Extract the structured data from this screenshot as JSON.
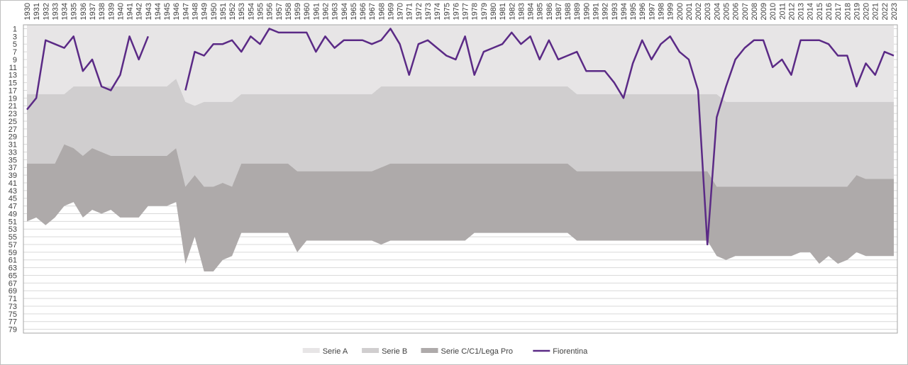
{
  "chart_data": {
    "type": "stacked_area_line",
    "categories": [
      "1930",
      "1931",
      "1932",
      "1933",
      "1934",
      "1935",
      "1936",
      "1937",
      "1938",
      "1939",
      "1940",
      "1941",
      "1942",
      "1943",
      "1944",
      "1945",
      "1946",
      "1947",
      "1948",
      "1949",
      "1950",
      "1951",
      "1952",
      "1953",
      "1954",
      "1955",
      "1956",
      "1957",
      "1958",
      "1959",
      "1960",
      "1961",
      "1962",
      "1963",
      "1964",
      "1965",
      "1966",
      "1967",
      "1968",
      "1969",
      "1970",
      "1971",
      "1972",
      "1973",
      "1974",
      "1975",
      "1976",
      "1977",
      "1978",
      "1979",
      "1980",
      "1981",
      "1982",
      "1983",
      "1984",
      "1985",
      "1986",
      "1987",
      "1988",
      "1989",
      "1990",
      "1991",
      "1992",
      "1993",
      "1994",
      "1995",
      "1996",
      "1997",
      "1998",
      "1999",
      "2000",
      "2001",
      "2002",
      "2003",
      "2004",
      "2005",
      "2006",
      "2007",
      "2008",
      "2009",
      "2010",
      "2011",
      "2012",
      "2013",
      "2014",
      "2015",
      "2016",
      "2017",
      "2018",
      "2019",
      "2020",
      "2021",
      "2022",
      "2023"
    ],
    "series": [
      {
        "name": "Serie A",
        "kind": "area",
        "color": "#e7e5e6",
        "values": [
          18,
          18,
          18,
          18,
          18,
          16,
          16,
          16,
          16,
          16,
          16,
          16,
          16,
          16,
          16,
          16,
          14,
          20,
          21,
          20,
          20,
          20,
          20,
          18,
          18,
          18,
          18,
          18,
          18,
          18,
          18,
          18,
          18,
          18,
          18,
          18,
          18,
          18,
          16,
          16,
          16,
          16,
          16,
          16,
          16,
          16,
          16,
          16,
          16,
          16,
          16,
          16,
          16,
          16,
          16,
          16,
          16,
          16,
          16,
          18,
          18,
          18,
          18,
          18,
          18,
          18,
          18,
          18,
          18,
          18,
          18,
          18,
          18,
          18,
          18,
          20,
          20,
          20,
          20,
          20,
          20,
          20,
          20,
          20,
          20,
          20,
          20,
          20,
          20,
          20,
          20,
          20,
          20,
          20
        ]
      },
      {
        "name": "Serie B",
        "kind": "area",
        "color": "#d0cecf",
        "values": [
          18,
          18,
          18,
          18,
          13,
          16,
          18,
          16,
          17,
          18,
          18,
          18,
          18,
          18,
          18,
          18,
          18,
          22,
          18,
          22,
          22,
          21,
          22,
          18,
          18,
          18,
          18,
          18,
          18,
          20,
          20,
          20,
          20,
          20,
          20,
          20,
          20,
          20,
          21,
          20,
          20,
          20,
          20,
          20,
          20,
          20,
          20,
          20,
          20,
          20,
          20,
          20,
          20,
          20,
          20,
          20,
          20,
          20,
          20,
          20,
          20,
          20,
          20,
          20,
          20,
          20,
          20,
          20,
          20,
          20,
          20,
          20,
          20,
          20,
          24,
          22,
          22,
          22,
          22,
          22,
          22,
          22,
          22,
          22,
          22,
          22,
          22,
          22,
          22,
          19,
          20,
          20,
          20,
          20
        ]
      },
      {
        "name": "Serie C/C1/Lega Pro",
        "kind": "area",
        "color": "#aeaaaa",
        "values": [
          15,
          14,
          16,
          14,
          16,
          14,
          16,
          16,
          16,
          14,
          16,
          16,
          16,
          13,
          13,
          13,
          14,
          20,
          16,
          22,
          22,
          20,
          18,
          18,
          18,
          18,
          18,
          18,
          18,
          21,
          18,
          18,
          18,
          18,
          18,
          18,
          18,
          18,
          20,
          20,
          20,
          20,
          20,
          20,
          20,
          20,
          20,
          20,
          18,
          18,
          18,
          18,
          18,
          18,
          18,
          18,
          18,
          18,
          18,
          18,
          18,
          18,
          18,
          18,
          18,
          18,
          18,
          18,
          18,
          18,
          18,
          18,
          18,
          18,
          18,
          19,
          18,
          18,
          18,
          18,
          18,
          18,
          18,
          17,
          17,
          20,
          18,
          20,
          19,
          20,
          20,
          20,
          20,
          20
        ]
      },
      {
        "name": "Fiorentina",
        "kind": "line",
        "color": "#5b2a86",
        "values": [
          22,
          19,
          4,
          5,
          6,
          3,
          12,
          9,
          16,
          17,
          13,
          3,
          9,
          3,
          null,
          null,
          null,
          17,
          7,
          8,
          5,
          5,
          4,
          7,
          3,
          5,
          1,
          2,
          2,
          2,
          2,
          7,
          3,
          6,
          4,
          4,
          4,
          5,
          4,
          1,
          5,
          13,
          5,
          4,
          6,
          8,
          9,
          3,
          13,
          7,
          6,
          5,
          2,
          5,
          3,
          9,
          4,
          9,
          8,
          7,
          12,
          12,
          12,
          15,
          19,
          10,
          4,
          9,
          5,
          3,
          7,
          9,
          17,
          57,
          24,
          16,
          9,
          6,
          4,
          4,
          11,
          9,
          13,
          4,
          4,
          4,
          5,
          8,
          8,
          16,
          10,
          13,
          7,
          8
        ]
      }
    ],
    "ylim": [
      0,
      80
    ],
    "y_reversed": true,
    "yticks": [
      1,
      3,
      5,
      7,
      9,
      11,
      13,
      15,
      17,
      19,
      21,
      23,
      25,
      27,
      29,
      31,
      33,
      35,
      37,
      39,
      41,
      43,
      45,
      47,
      49,
      51,
      53,
      55,
      57,
      59,
      61,
      63,
      65,
      67,
      69,
      71,
      73,
      75,
      77,
      79
    ],
    "grid": true,
    "legend": "bottom"
  }
}
